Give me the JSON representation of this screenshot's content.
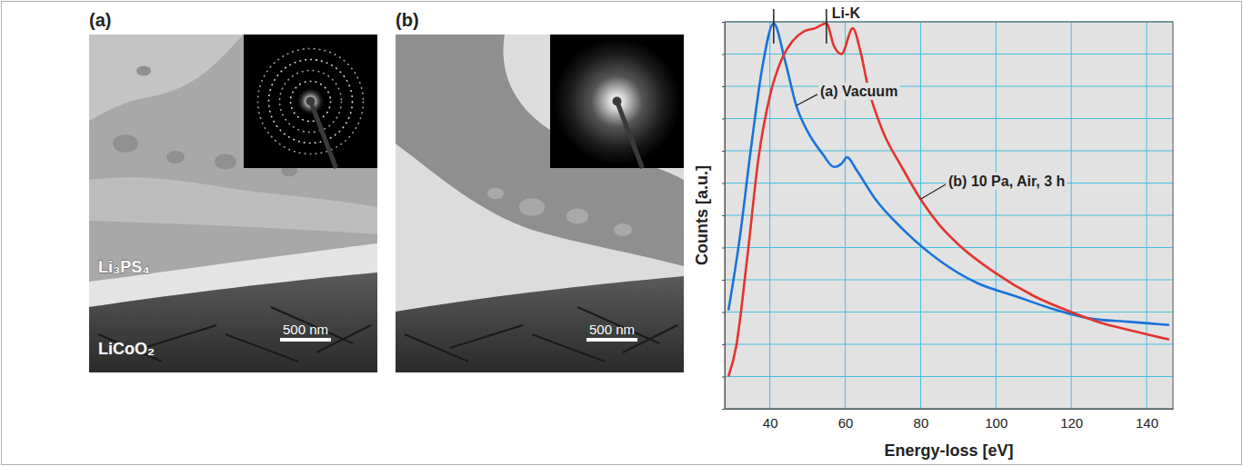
{
  "panels": [
    {
      "letter": "(a)",
      "labels": [
        "Li₃PS₄",
        "LiCoO₂"
      ],
      "scale_bar": "500 nm"
    },
    {
      "letter": "(b)",
      "scale_bar": "500 nm"
    }
  ],
  "chart_data": {
    "type": "line",
    "x_label": "Energy-loss [eV]",
    "y_label": "Counts [a.u.]",
    "xlim": [
      28,
      147
    ],
    "ylim": [
      0,
      12
    ],
    "xticks": [
      40,
      60,
      80,
      100,
      120,
      140
    ],
    "yticks": [
      0,
      1,
      2,
      3,
      4,
      5,
      6,
      7,
      8,
      9,
      10,
      11,
      12
    ],
    "grid": true,
    "tick_labels": "x",
    "annotations": [
      {
        "text": "Li-K",
        "x": [
          41,
          55
        ]
      }
    ],
    "series": [
      {
        "name": "(a) Vacuum",
        "color": "#1a73d9",
        "x": [
          29,
          32,
          35,
          38,
          41,
          44,
          47,
          50,
          54,
          57,
          59,
          60.5,
          63,
          68,
          75,
          85,
          95,
          105,
          115,
          125,
          135,
          146
        ],
        "values": [
          3.05,
          5.3,
          8.1,
          10.6,
          11.95,
          10.8,
          9.4,
          8.6,
          7.9,
          7.5,
          7.6,
          7.8,
          7.4,
          6.5,
          5.6,
          4.6,
          3.9,
          3.5,
          3.1,
          2.8,
          2.7,
          2.6
        ]
      },
      {
        "name": "(b) 10 Pa, Air, 3 h",
        "color": "#e3342f",
        "x": [
          29,
          31,
          34,
          37,
          40,
          43,
          46,
          49,
          52,
          55,
          57,
          59,
          62,
          64,
          66,
          70,
          75,
          80,
          85,
          90,
          100,
          110,
          120,
          127,
          135,
          146
        ],
        "values": [
          1.0,
          1.9,
          4.7,
          7.8,
          9.7,
          10.8,
          11.4,
          11.7,
          11.8,
          11.95,
          11.25,
          11.0,
          11.8,
          11.1,
          10.0,
          8.6,
          7.5,
          6.5,
          5.7,
          5.1,
          4.2,
          3.5,
          3.0,
          2.7,
          2.45,
          2.15
        ]
      }
    ]
  }
}
